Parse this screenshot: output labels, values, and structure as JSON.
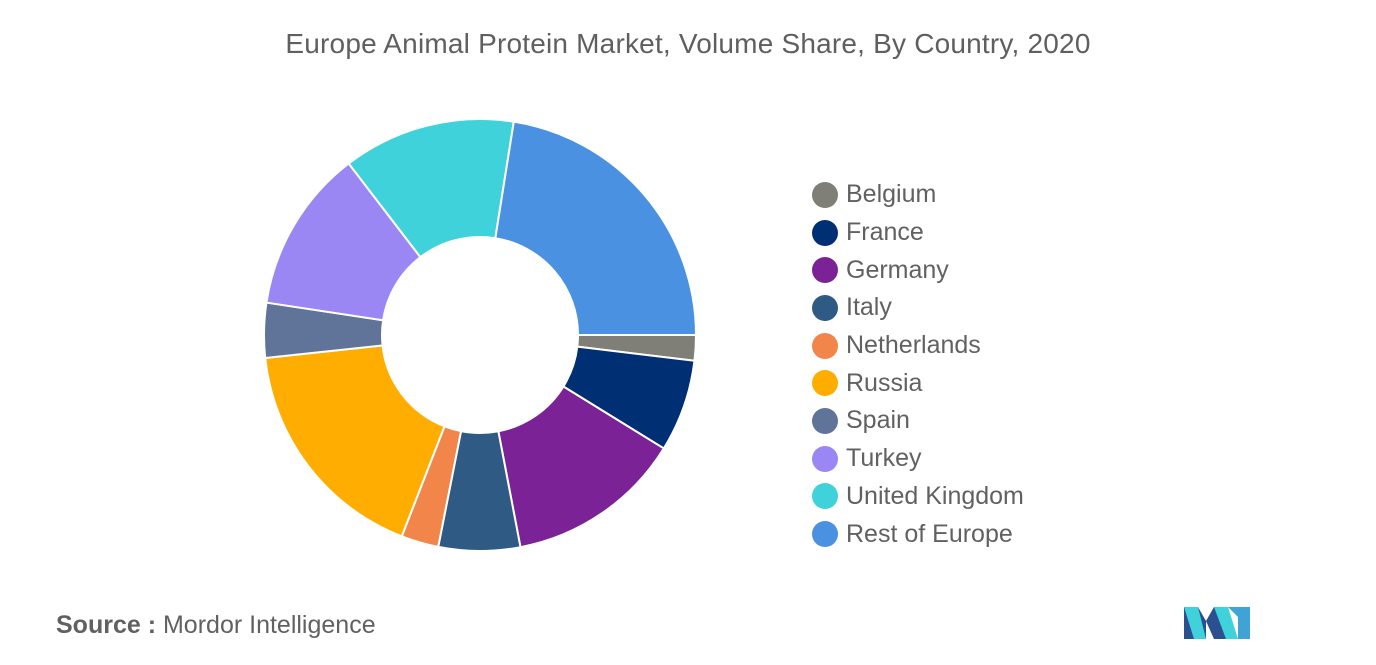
{
  "chart_data": {
    "type": "pie",
    "title": "Europe Animal Protein Market, Volume Share, By Country, 2020",
    "donut": true,
    "legend_position": "right",
    "series": [
      {
        "name": "Belgium",
        "value": 1.9,
        "color": "#7f7f77"
      },
      {
        "name": "France",
        "value": 6.9,
        "color": "#002f73"
      },
      {
        "name": "Germany",
        "value": 13.2,
        "color": "#7b2296"
      },
      {
        "name": "Italy",
        "value": 6.1,
        "color": "#2e5a83"
      },
      {
        "name": "Netherlands",
        "value": 2.8,
        "color": "#f2864a"
      },
      {
        "name": "Russia",
        "value": 17.4,
        "color": "#ffad00"
      },
      {
        "name": "Spain",
        "value": 4.1,
        "color": "#607399"
      },
      {
        "name": "Turkey",
        "value": 12.2,
        "color": "#9b87f3"
      },
      {
        "name": "United Kingdom",
        "value": 12.9,
        "color": "#3fd2da"
      },
      {
        "name": "Rest of Europe",
        "value": 22.5,
        "color": "#4b91e2"
      }
    ]
  },
  "source": {
    "label": "Source :",
    "text": "Mordor Intelligence"
  },
  "logo": {
    "icon": "mordor-intelligence-logo-icon"
  }
}
